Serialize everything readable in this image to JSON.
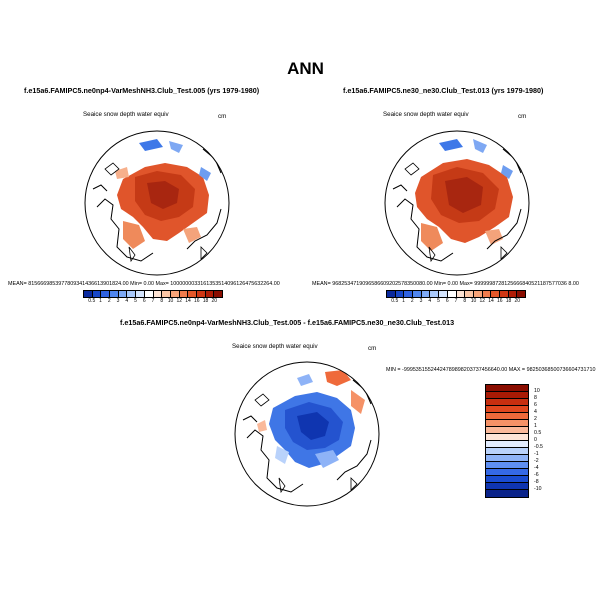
{
  "figure": {
    "title": "ANN"
  },
  "panels": [
    {
      "case": "f.e15a6.FAMIPC5.ne0np4-VarMeshNH3.Club_Test.005 (yrs 1979-1980)",
      "variable": "Seaice snow depth water equiv",
      "units": "cm",
      "stats": "MEAN= 8156669853977809341436613901824.00  Min=   0.00  Max= 1000000033161353514096126475632264.00"
    },
    {
      "case": "f.e15a6.FAMIPC5.ne30_ne30.Club_Test.013 (yrs 1979-1980)",
      "variable": "Seaice snow depth water equiv",
      "units": "cm",
      "stats": "MEAN= 9682534719096586609202578350080.00  Min=   0.00  Max= 9999998728125666840521187577036 8.00"
    },
    {
      "case": "f.e15a6.FAMIPC5.ne0np4-VarMeshNH3.Club_Test.005 - f.e15a6.FAMIPC5.ne30_ne30.Club_Test.013",
      "variable": "Seaice snow depth water equiv",
      "units": "cm",
      "stats": "MIN = -99953515524424789898203737456640.00 MAX = 98250368500736604731710"
    }
  ],
  "colorbar_abs": {
    "ticks": [
      "0.5",
      "1",
      "2",
      "3",
      "4",
      "5",
      "6",
      "7",
      "8",
      "10",
      "12",
      "14",
      "16",
      "18",
      "20"
    ],
    "colors": [
      "#0a2a9e",
      "#1747c8",
      "#2f62e0",
      "#4f86f0",
      "#7eaaf6",
      "#a9c9fb",
      "#d3e4fd",
      "#ffffff",
      "#fde3d3",
      "#fbc6a6",
      "#f7a479",
      "#f07c4d",
      "#e4582a",
      "#cf3714",
      "#b01d06",
      "#8a0d00"
    ]
  },
  "colorbar_diff": {
    "ticks": [
      "10",
      "8",
      "6",
      "4",
      "2",
      "1",
      "0.5",
      "0",
      "-0.5",
      "-1",
      "-2",
      "-4",
      "-6",
      "-8",
      "-10"
    ],
    "colors": [
      "#8a0d00",
      "#a81a05",
      "#c72f10",
      "#e0481f",
      "#ef6a3b",
      "#f59267",
      "#fab99a",
      "#fde4d6",
      "#e2ecfe",
      "#b9d2fb",
      "#8eb3f7",
      "#5f8ff2",
      "#3569e6",
      "#1a4cd0",
      "#0f35b0",
      "#0a238a"
    ]
  }
}
